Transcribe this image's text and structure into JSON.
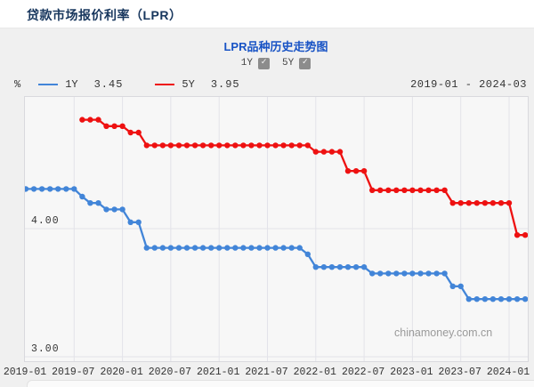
{
  "header": {
    "title": "贷款市场报价利率（LPR）"
  },
  "chart_header": {
    "title": "LPR品种历史走势图",
    "toggles": [
      {
        "label": "1Y",
        "checked": true,
        "check_glyph": "✓"
      },
      {
        "label": "5Y",
        "checked": true,
        "check_glyph": "✓"
      }
    ]
  },
  "legend": {
    "unit": "%",
    "items": [
      {
        "label": "1Y",
        "value": "3.45",
        "color": "#4285d8"
      },
      {
        "label": "5Y",
        "value": "3.95",
        "color": "#ee1111"
      }
    ],
    "date_range": "2019-01 - 2024-03"
  },
  "watermark": "chinamoney.com.cn",
  "colors": {
    "accent_blue_line": "#4285d8",
    "accent_red_line": "#ee1111",
    "title_navy": "#17365d",
    "chart_title_blue": "#1853c5",
    "grid": "#e3e3e9",
    "plot_bg": "#f7f7f7"
  },
  "chart_data": {
    "type": "line",
    "title": "LPR品种历史走势图",
    "xlabel": "",
    "ylabel": "%",
    "ylim": [
      2.97,
      5.03
    ],
    "grid": "x ticks every 6 months, y gridlines at 4.00 and 3.00",
    "legend_position": "top-left",
    "x": [
      "2019-01",
      "2019-02",
      "2019-03",
      "2019-04",
      "2019-05",
      "2019-06",
      "2019-07",
      "2019-08",
      "2019-09",
      "2019-10",
      "2019-11",
      "2019-12",
      "2020-01",
      "2020-02",
      "2020-03",
      "2020-04",
      "2020-05",
      "2020-06",
      "2020-07",
      "2020-08",
      "2020-09",
      "2020-10",
      "2020-11",
      "2020-12",
      "2021-01",
      "2021-02",
      "2021-03",
      "2021-04",
      "2021-05",
      "2021-06",
      "2021-07",
      "2021-08",
      "2021-09",
      "2021-10",
      "2021-11",
      "2021-12",
      "2022-01",
      "2022-02",
      "2022-03",
      "2022-04",
      "2022-05",
      "2022-06",
      "2022-07",
      "2022-08",
      "2022-09",
      "2022-10",
      "2022-11",
      "2022-12",
      "2023-01",
      "2023-02",
      "2023-03",
      "2023-04",
      "2023-05",
      "2023-06",
      "2023-07",
      "2023-08",
      "2023-09",
      "2023-10",
      "2023-11",
      "2023-12",
      "2024-01",
      "2024-02",
      "2024-03"
    ],
    "x_tick_labels": [
      "2019-01",
      "2019-07",
      "2020-01",
      "2020-07",
      "2021-01",
      "2021-07",
      "2022-01",
      "2022-07",
      "2023-01",
      "2023-07",
      "2024-01"
    ],
    "y_ticks": [
      {
        "label": "4.00",
        "value": 4.0
      },
      {
        "label": "3.00",
        "value": 3.0
      }
    ],
    "series": [
      {
        "name": "1Y",
        "color": "#4285d8",
        "start_index": 0,
        "latest_value": 3.45,
        "values": [
          4.31,
          4.31,
          4.31,
          4.31,
          4.31,
          4.31,
          4.31,
          4.25,
          4.2,
          4.2,
          4.15,
          4.15,
          4.15,
          4.05,
          4.05,
          3.85,
          3.85,
          3.85,
          3.85,
          3.85,
          3.85,
          3.85,
          3.85,
          3.85,
          3.85,
          3.85,
          3.85,
          3.85,
          3.85,
          3.85,
          3.85,
          3.85,
          3.85,
          3.85,
          3.85,
          3.8,
          3.7,
          3.7,
          3.7,
          3.7,
          3.7,
          3.7,
          3.7,
          3.65,
          3.65,
          3.65,
          3.65,
          3.65,
          3.65,
          3.65,
          3.65,
          3.65,
          3.65,
          3.55,
          3.55,
          3.45,
          3.45,
          3.45,
          3.45,
          3.45,
          3.45,
          3.45,
          3.45
        ]
      },
      {
        "name": "5Y",
        "color": "#ee1111",
        "start_index": 7,
        "latest_value": 3.95,
        "values": [
          4.85,
          4.85,
          4.85,
          4.8,
          4.8,
          4.8,
          4.75,
          4.75,
          4.65,
          4.65,
          4.65,
          4.65,
          4.65,
          4.65,
          4.65,
          4.65,
          4.65,
          4.65,
          4.65,
          4.65,
          4.65,
          4.65,
          4.65,
          4.65,
          4.65,
          4.65,
          4.65,
          4.65,
          4.65,
          4.6,
          4.6,
          4.6,
          4.6,
          4.45,
          4.45,
          4.45,
          4.3,
          4.3,
          4.3,
          4.3,
          4.3,
          4.3,
          4.3,
          4.3,
          4.3,
          4.3,
          4.2,
          4.2,
          4.2,
          4.2,
          4.2,
          4.2,
          4.2,
          4.2,
          3.95,
          3.95
        ]
      }
    ]
  }
}
